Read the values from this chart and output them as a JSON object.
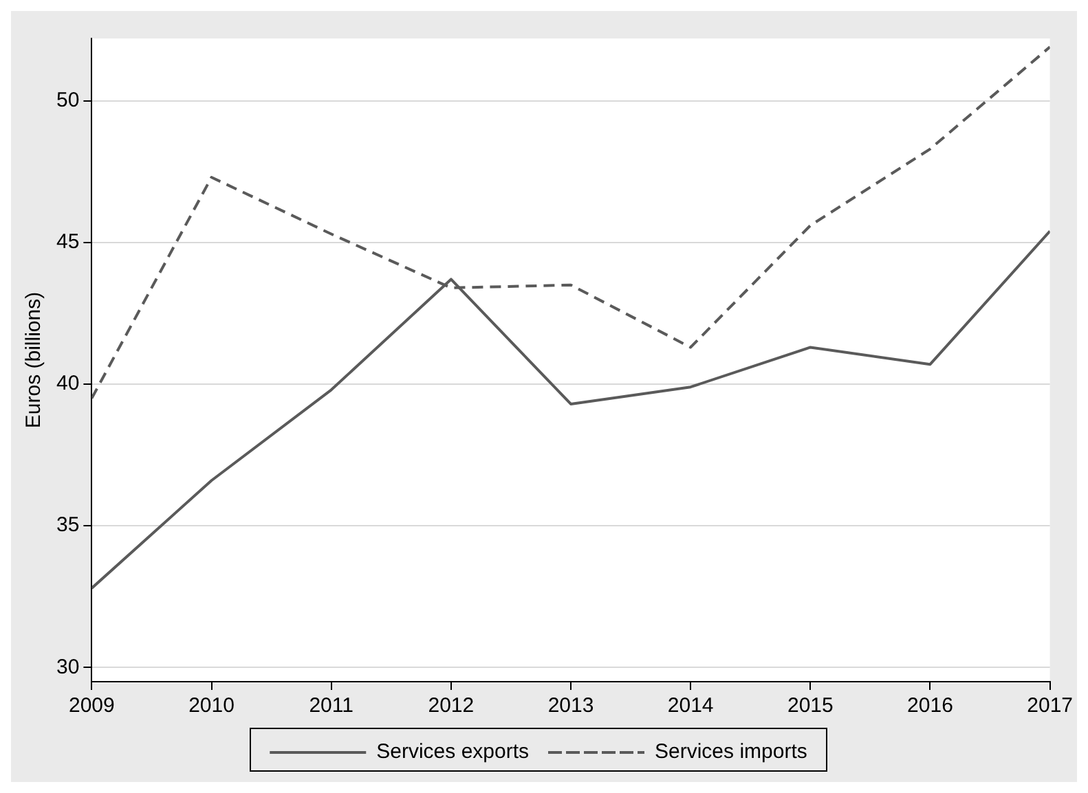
{
  "chart_data": {
    "type": "line",
    "ylabel": "Euros (billions)",
    "x": [
      2009,
      2010,
      2011,
      2012,
      2013,
      2014,
      2015,
      2016,
      2017
    ],
    "series": [
      {
        "name": "Services exports",
        "color": "#5a5a5a",
        "line_style": "solid",
        "values": [
          32.8,
          36.6,
          39.8,
          43.7,
          39.3,
          39.9,
          41.3,
          40.7,
          45.4
        ]
      },
      {
        "name": "Services imports",
        "color": "#5a5a5a",
        "line_style": "dashed",
        "values": [
          39.5,
          47.3,
          45.3,
          43.4,
          43.5,
          41.3,
          45.6,
          48.3,
          51.9
        ]
      }
    ],
    "xlim": [
      2009,
      2017
    ],
    "xticks": [
      2009,
      2010,
      2011,
      2012,
      2013,
      2014,
      2015,
      2016,
      2017
    ],
    "ylim": [
      29.5,
      52.2
    ],
    "yticks": [
      30,
      35,
      40,
      45,
      50
    ],
    "grid": "y",
    "legend": "bottom",
    "marker": "none"
  }
}
